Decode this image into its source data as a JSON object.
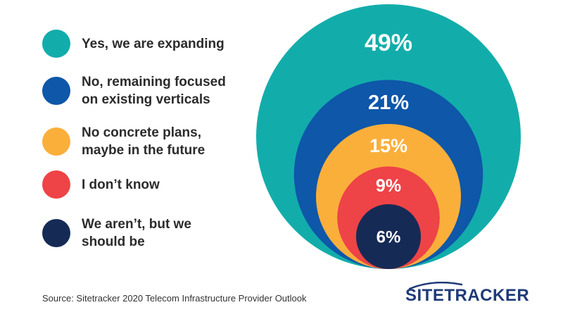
{
  "chart_data": {
    "type": "pie",
    "categories": [
      "Yes, we are expanding",
      "No, remaining focused\non existing verticals",
      "No concrete plans,\nmaybe in the future",
      "I don’t know",
      "We aren’t, but we\nshould be"
    ],
    "values": [
      49,
      21,
      15,
      9,
      6
    ],
    "value_labels": [
      "49%",
      "21%",
      "15%",
      "9%",
      "6%"
    ],
    "colors": [
      "#12ADAA",
      "#0E57A9",
      "#FBAF3B",
      "#EE4347",
      "#152B55"
    ],
    "style": "nested concentric circles",
    "legend_position": "left"
  },
  "source": "Source: Sitetracker 2020 Telecom Infrastructure Provider Outlook",
  "logo": {
    "text": "SITETRACKER",
    "color": "#1f3a78"
  }
}
